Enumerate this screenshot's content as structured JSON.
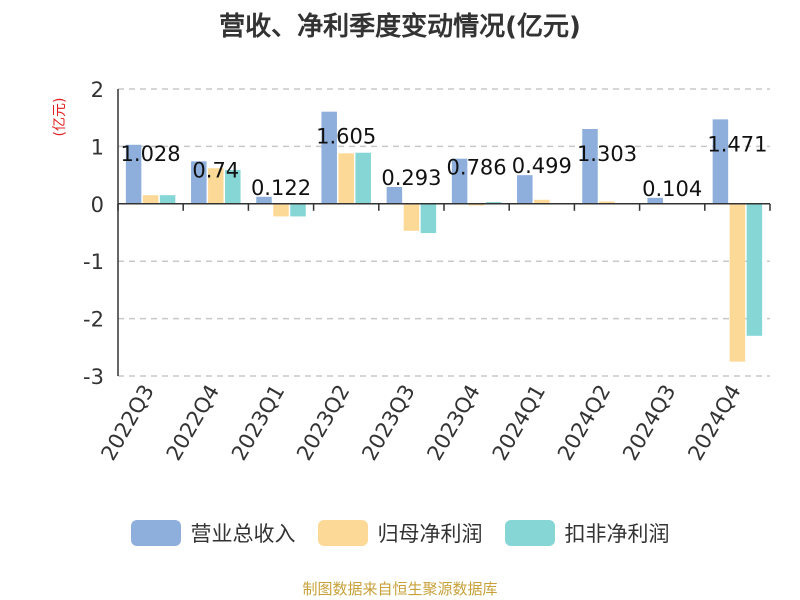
{
  "chart_data": {
    "type": "bar",
    "title": "营收、净利季度变动情况(亿元)",
    "ylabel": "(亿元)",
    "ylim": [
      -3,
      2
    ],
    "yticks": [
      2,
      1,
      0,
      -1,
      -2,
      -3
    ],
    "grid": true,
    "legend_position": "bottom",
    "categories": [
      "2022Q3",
      "2022Q4",
      "2023Q1",
      "2023Q2",
      "2023Q3",
      "2023Q4",
      "2024Q1",
      "2024Q2",
      "2024Q3",
      "2024Q4"
    ],
    "series": [
      {
        "name": "营业总收入",
        "color": "#8EAEDC",
        "values": [
          1.028,
          0.74,
          0.122,
          1.605,
          0.293,
          0.786,
          0.499,
          1.303,
          0.104,
          1.471
        ]
      },
      {
        "name": "归母净利润",
        "color": "#FDD998",
        "values": [
          0.15,
          0.62,
          -0.22,
          0.88,
          -0.47,
          -0.03,
          0.07,
          0.04,
          -0.01,
          -2.75
        ]
      },
      {
        "name": "扣非净利润",
        "color": "#86D6D6",
        "values": [
          0.15,
          0.59,
          -0.22,
          0.89,
          -0.51,
          0.03,
          0.01,
          0.0,
          0.0,
          -2.3
        ]
      }
    ],
    "data_labels": [
      "1.028",
      "0.74",
      "0.122",
      "1.605",
      "0.293",
      "0.786",
      "0.499",
      "1.303",
      "0.104",
      "1.471"
    ]
  },
  "source": "制图数据来自恒生聚源数据库"
}
